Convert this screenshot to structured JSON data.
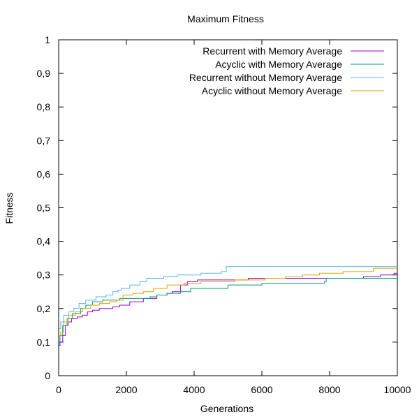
{
  "chart_data": {
    "type": "line",
    "title": "Maximum Fitness",
    "xlabel": "Generations",
    "ylabel": "Fitness",
    "xlim": [
      0,
      10000
    ],
    "ylim": [
      0,
      1
    ],
    "x_ticks": [
      0,
      2000,
      4000,
      6000,
      8000,
      10000
    ],
    "x_tick_labels": [
      "0",
      "2000",
      "4000",
      "6000",
      "8000",
      "10000"
    ],
    "y_ticks": [
      0,
      0.1,
      0.2,
      0.3,
      0.4,
      0.5,
      0.6,
      0.7,
      0.8,
      0.9,
      1
    ],
    "y_tick_labels": [
      "0",
      "0,1",
      "0,2",
      "0,3",
      "0,4",
      "0,5",
      "0,6",
      "0,7",
      "0,8",
      "0,9",
      "1"
    ],
    "grid": false,
    "legend_position": "top-right",
    "series": [
      {
        "name": "Recurrent with Memory Average",
        "color": "#9400d3",
        "step": true,
        "points": [
          [
            0,
            0.09
          ],
          [
            40,
            0.1
          ],
          [
            120,
            0.12
          ],
          [
            200,
            0.15
          ],
          [
            280,
            0.16
          ],
          [
            380,
            0.17
          ],
          [
            550,
            0.175
          ],
          [
            700,
            0.18
          ],
          [
            850,
            0.19
          ],
          [
            1000,
            0.195
          ],
          [
            1200,
            0.2
          ],
          [
            1600,
            0.205
          ],
          [
            1800,
            0.21
          ],
          [
            2100,
            0.22
          ],
          [
            2500,
            0.23
          ],
          [
            2900,
            0.24
          ],
          [
            3200,
            0.245
          ],
          [
            3350,
            0.25
          ],
          [
            3600,
            0.27
          ],
          [
            3800,
            0.28
          ],
          [
            4100,
            0.285
          ],
          [
            5200,
            0.285
          ],
          [
            5600,
            0.29
          ],
          [
            6600,
            0.29
          ],
          [
            8200,
            0.29
          ],
          [
            9000,
            0.295
          ],
          [
            9500,
            0.3
          ],
          [
            9900,
            0.305
          ],
          [
            10000,
            0.305
          ]
        ]
      },
      {
        "name": "Acyclic with Memory Average",
        "color": "#009e73",
        "step": true,
        "points": [
          [
            0,
            0.1
          ],
          [
            40,
            0.12
          ],
          [
            120,
            0.15
          ],
          [
            250,
            0.17
          ],
          [
            400,
            0.185
          ],
          [
            650,
            0.2
          ],
          [
            800,
            0.21
          ],
          [
            1000,
            0.22
          ],
          [
            1300,
            0.225
          ],
          [
            1800,
            0.23
          ],
          [
            2300,
            0.23
          ],
          [
            2700,
            0.235
          ],
          [
            2900,
            0.24
          ],
          [
            3200,
            0.245
          ],
          [
            3600,
            0.25
          ],
          [
            3900,
            0.26
          ],
          [
            4200,
            0.26
          ],
          [
            5000,
            0.27
          ],
          [
            6000,
            0.275
          ],
          [
            7850,
            0.28
          ],
          [
            7900,
            0.29
          ],
          [
            10000,
            0.29
          ]
        ]
      },
      {
        "name": "Recurrent without Memory Average",
        "color": "#56b4e9",
        "step": true,
        "points": [
          [
            0,
            0.14
          ],
          [
            60,
            0.16
          ],
          [
            150,
            0.18
          ],
          [
            300,
            0.19
          ],
          [
            450,
            0.2
          ],
          [
            600,
            0.215
          ],
          [
            800,
            0.225
          ],
          [
            1100,
            0.235
          ],
          [
            1400,
            0.24
          ],
          [
            1600,
            0.25
          ],
          [
            1750,
            0.255
          ],
          [
            1850,
            0.26
          ],
          [
            2100,
            0.27
          ],
          [
            2400,
            0.28
          ],
          [
            2600,
            0.29
          ],
          [
            3100,
            0.295
          ],
          [
            3500,
            0.3
          ],
          [
            4200,
            0.305
          ],
          [
            4800,
            0.31
          ],
          [
            4950,
            0.325
          ],
          [
            5900,
            0.325
          ],
          [
            6200,
            0.325
          ],
          [
            10000,
            0.325
          ]
        ]
      },
      {
        "name": "Acyclic without Memory Average",
        "color": "#e69f00",
        "step": true,
        "points": [
          [
            0,
            0.12
          ],
          [
            60,
            0.13
          ],
          [
            150,
            0.16
          ],
          [
            300,
            0.18
          ],
          [
            500,
            0.19
          ],
          [
            700,
            0.2
          ],
          [
            950,
            0.21
          ],
          [
            1200,
            0.215
          ],
          [
            1500,
            0.22
          ],
          [
            1700,
            0.225
          ],
          [
            1900,
            0.24
          ],
          [
            2200,
            0.245
          ],
          [
            2500,
            0.25
          ],
          [
            2800,
            0.26
          ],
          [
            3200,
            0.27
          ],
          [
            3700,
            0.275
          ],
          [
            4200,
            0.28
          ],
          [
            5200,
            0.285
          ],
          [
            6100,
            0.29
          ],
          [
            6700,
            0.295
          ],
          [
            7200,
            0.3
          ],
          [
            7700,
            0.305
          ],
          [
            8400,
            0.31
          ],
          [
            9300,
            0.32
          ],
          [
            10000,
            0.32
          ]
        ]
      }
    ]
  }
}
